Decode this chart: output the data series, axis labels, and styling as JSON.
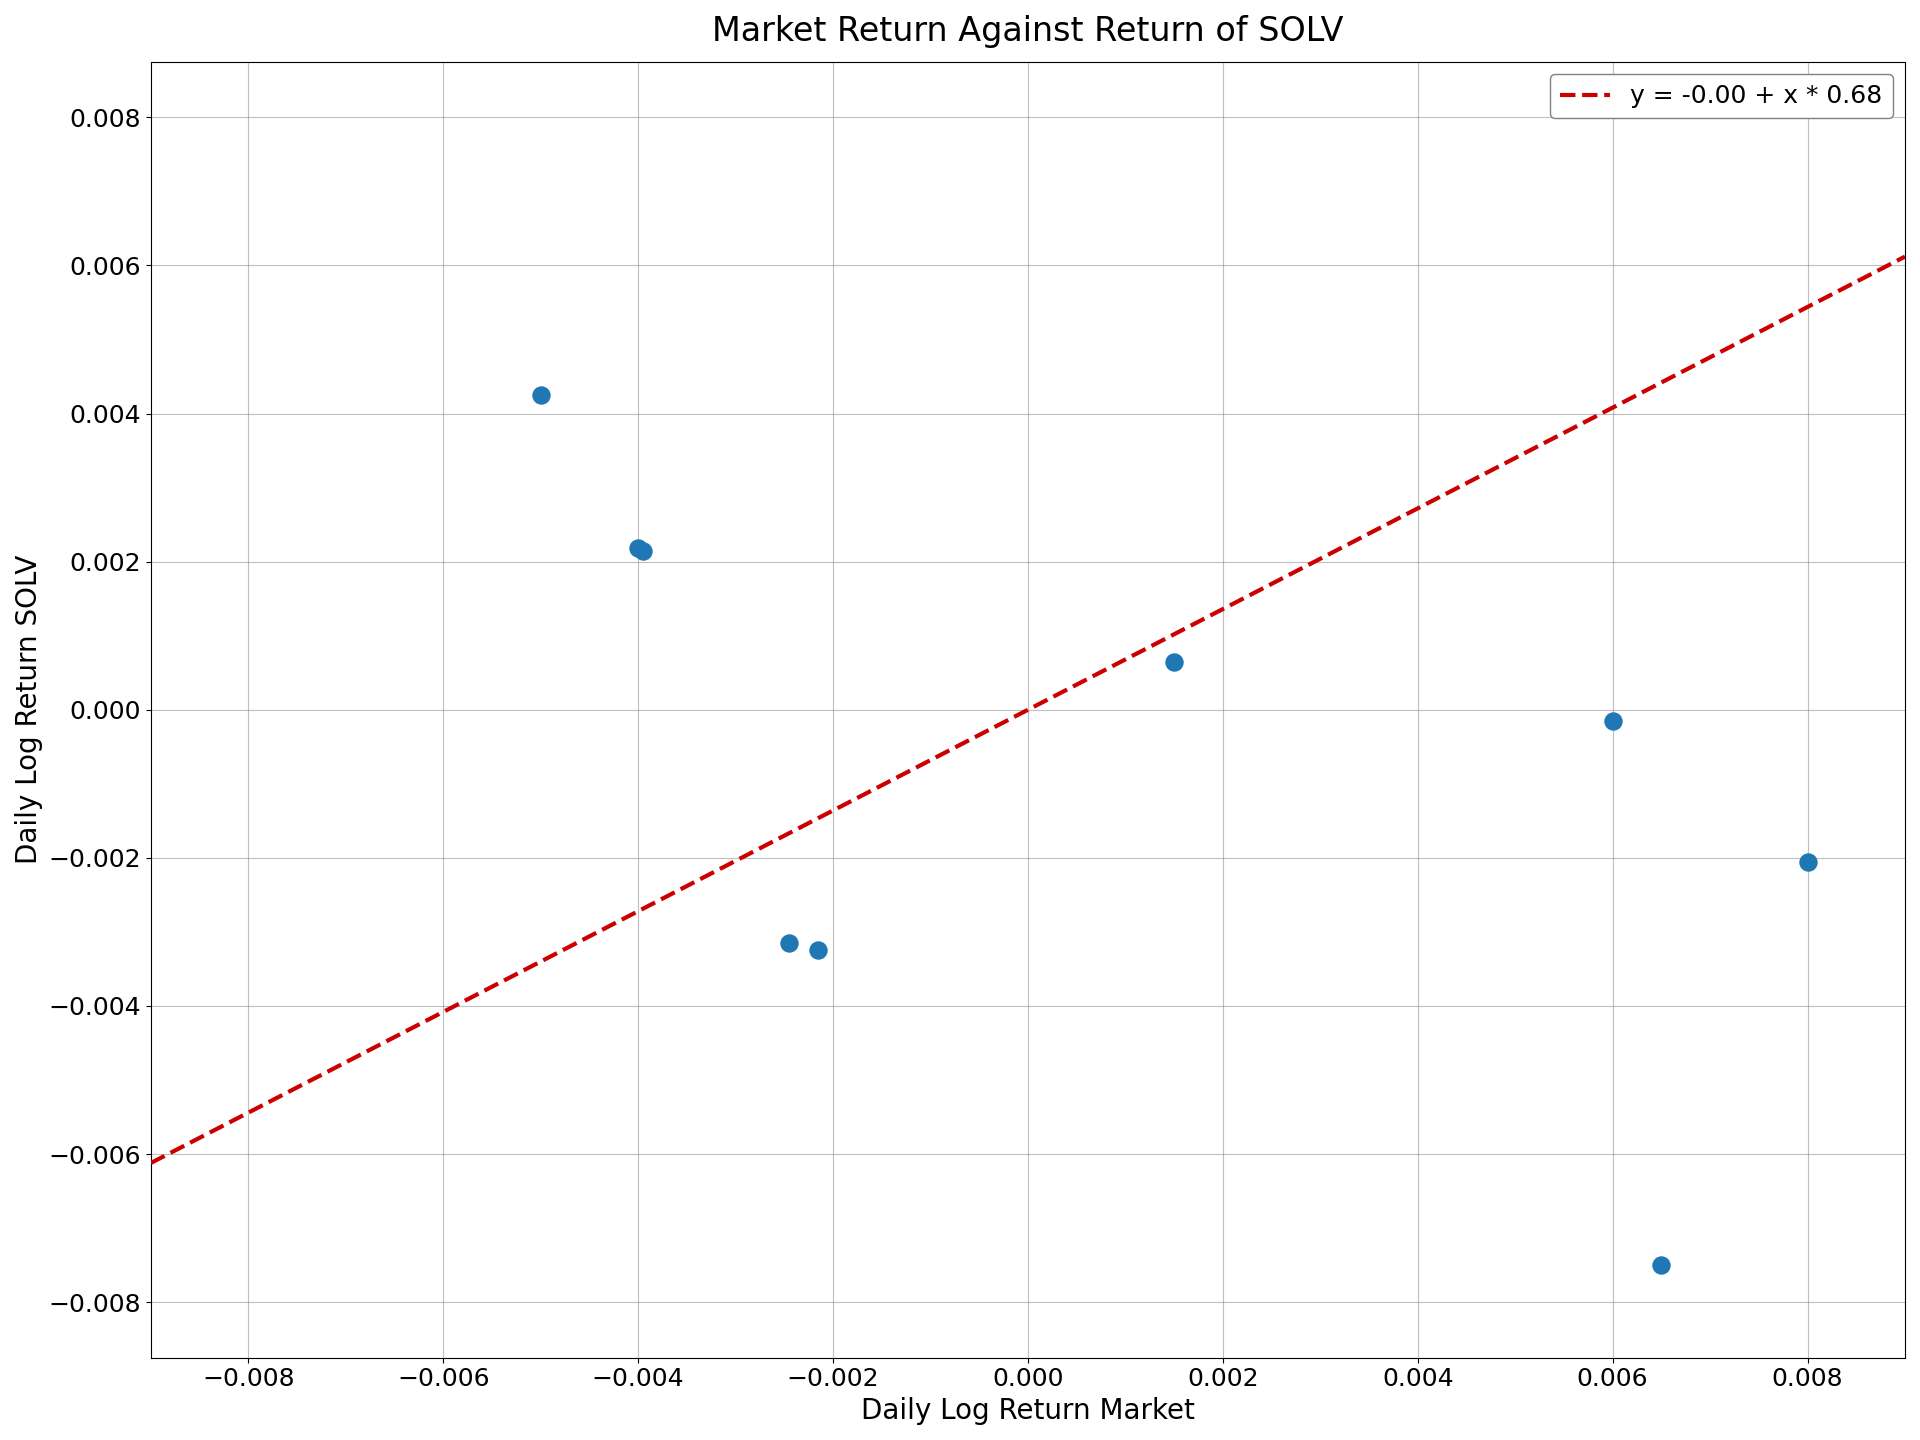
{
  "title": "Market Return Against Return of SOLV",
  "xlabel": "Daily Log Return Market",
  "ylabel": "Daily Log Return SOLV",
  "scatter_x": [
    -0.005,
    -0.004,
    -0.00395,
    -0.00245,
    -0.00215,
    0.0015,
    0.006,
    0.0065,
    0.008
  ],
  "scatter_y": [
    0.00425,
    0.00218,
    0.00215,
    -0.00315,
    -0.00325,
    0.00065,
    -0.00015,
    -0.0075,
    -0.00205
  ],
  "slope": 0.68,
  "intercept": -0.0,
  "xlim": [
    -0.009,
    0.009
  ],
  "ylim": [
    -0.00875,
    0.00875
  ],
  "xticks": [
    -0.008,
    -0.006,
    -0.004,
    -0.002,
    0.0,
    0.002,
    0.004,
    0.006,
    0.008
  ],
  "yticks": [
    -0.008,
    -0.006,
    -0.004,
    -0.002,
    0.0,
    0.002,
    0.004,
    0.006,
    0.008
  ],
  "scatter_color": "#1f77b4",
  "line_color": "#cc0000",
  "legend_label": "y = -0.00 + x * 0.68",
  "marker_size": 150,
  "title_fontsize": 24,
  "label_fontsize": 20,
  "tick_fontsize": 18,
  "legend_fontsize": 18
}
